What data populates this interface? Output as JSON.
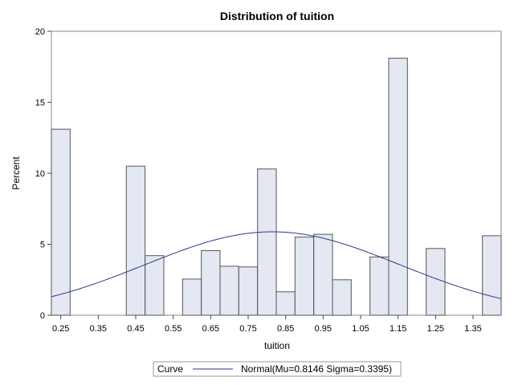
{
  "chart_data": {
    "type": "bar",
    "title": "Distribution of tuition",
    "xlabel": "tuition",
    "ylabel": "Percent",
    "xlim": [
      0.225,
      1.425
    ],
    "ylim": [
      0,
      20
    ],
    "xticks": [
      "0.25",
      "0.35",
      "0.45",
      "0.55",
      "0.65",
      "0.75",
      "0.85",
      "0.95",
      "1.05",
      "1.15",
      "1.25",
      "1.35"
    ],
    "yticks": [
      "0",
      "5",
      "10",
      "15",
      "20"
    ],
    "bin_width": 0.05,
    "bins": [
      {
        "x": 0.25,
        "value": 13.1
      },
      {
        "x": 0.3,
        "value": 0
      },
      {
        "x": 0.35,
        "value": 0
      },
      {
        "x": 0.4,
        "value": 0
      },
      {
        "x": 0.45,
        "value": 10.5
      },
      {
        "x": 0.5,
        "value": 4.2
      },
      {
        "x": 0.55,
        "value": 0
      },
      {
        "x": 0.6,
        "value": 2.55
      },
      {
        "x": 0.65,
        "value": 4.55
      },
      {
        "x": 0.7,
        "value": 3.45
      },
      {
        "x": 0.75,
        "value": 3.4
      },
      {
        "x": 0.8,
        "value": 10.3
      },
      {
        "x": 0.85,
        "value": 1.65
      },
      {
        "x": 0.9,
        "value": 5.5
      },
      {
        "x": 0.95,
        "value": 5.7
      },
      {
        "x": 1.0,
        "value": 2.5
      },
      {
        "x": 1.05,
        "value": 0
      },
      {
        "x": 1.1,
        "value": 4.1
      },
      {
        "x": 1.15,
        "value": 18.1
      },
      {
        "x": 1.2,
        "value": 0
      },
      {
        "x": 1.25,
        "value": 4.7
      },
      {
        "x": 1.3,
        "value": 0
      },
      {
        "x": 1.35,
        "value": 0
      },
      {
        "x": 1.4,
        "value": 5.6
      }
    ],
    "curve": {
      "mu": 0.8146,
      "sigma": 0.3395,
      "color": "#2a3a8c"
    },
    "legend": {
      "position": "bottom-center",
      "title": "Curve",
      "entry": "Normal(Mu=0.8146 Sigma=0.3395)"
    },
    "bar_fill": "#e4e8f2",
    "bar_stroke": "#555555",
    "grid": false
  }
}
